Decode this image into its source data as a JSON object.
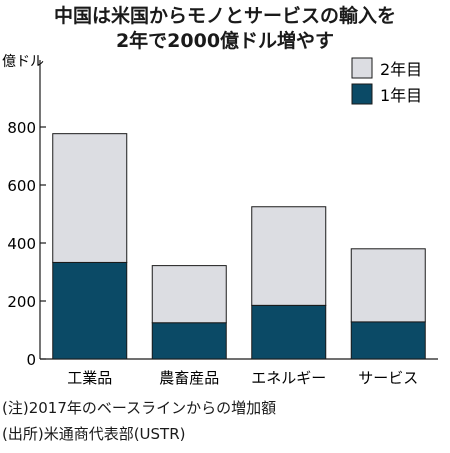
{
  "title": [
    "中国は米国からモノとサービスの輸入を",
    "2年で2000億ドル増やす"
  ],
  "unit_label": "億ドル",
  "notes": [
    "(注)2017年のベースラインからの増加額",
    "(出所)米通商代表部(USTR)"
  ],
  "colors": {
    "year1": "#0b4a66",
    "year2": "#dcdde2",
    "outline": "#1a1a1a"
  },
  "chart_data": {
    "type": "bar",
    "stacked": true,
    "categories": [
      "工業品",
      "農畜産品",
      "エネルギー",
      "サービス"
    ],
    "series": [
      {
        "name": "1年目",
        "values": [
          333,
          125,
          185,
          128
        ]
      },
      {
        "name": "2年目",
        "values": [
          444,
          197,
          340,
          252
        ]
      }
    ],
    "ylim": [
      0,
      800
    ],
    "yticks": [
      0,
      200,
      400,
      600,
      800
    ],
    "legend": {
      "placement": "top-right",
      "entries": [
        "2年目",
        "1年目"
      ]
    },
    "grid": false
  }
}
